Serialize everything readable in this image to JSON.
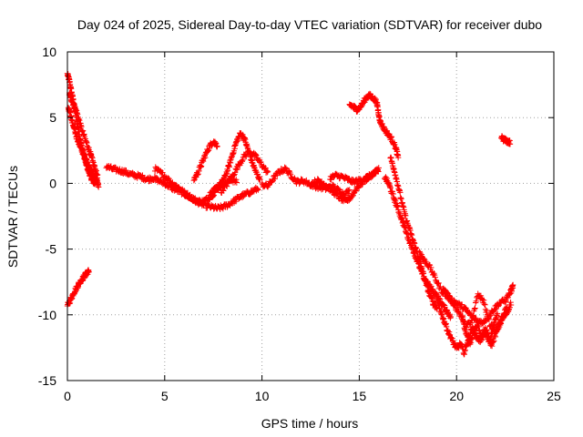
{
  "chart_data": {
    "type": "scatter",
    "title": "Day 024 of 2025, Sidereal Day-to-day VTEC variation (SDTVAR) for receiver dubo",
    "xlabel": "GPS time / hours",
    "ylabel": "SDTVAR / TECUs",
    "xlim": [
      0,
      25
    ],
    "ylim": [
      -15,
      10
    ],
    "xticks": [
      0,
      5,
      10,
      15,
      20,
      25
    ],
    "yticks": [
      -15,
      -10,
      -5,
      0,
      5,
      10
    ],
    "grid": true,
    "marker": "+",
    "series_color": "#ff0000",
    "series": [
      {
        "name": "SDTVAR",
        "segments": [
          [
            [
              0.0,
              8.3
            ],
            [
              0.1,
              7.8
            ],
            [
              0.2,
              7.0
            ],
            [
              0.3,
              6.3
            ],
            [
              0.4,
              5.5
            ],
            [
              0.5,
              4.6
            ],
            [
              0.6,
              3.8
            ],
            [
              0.7,
              3.0
            ],
            [
              0.8,
              2.4
            ],
            [
              0.9,
              1.8
            ],
            [
              1.0,
              1.3
            ],
            [
              1.1,
              0.9
            ],
            [
              1.2,
              0.5
            ],
            [
              1.3,
              0.2
            ],
            [
              1.4,
              0.0
            ]
          ],
          [
            [
              0.05,
              5.8
            ],
            [
              0.15,
              5.2
            ],
            [
              0.3,
              4.5
            ],
            [
              0.45,
              3.6
            ],
            [
              0.6,
              3.0
            ],
            [
              0.75,
              2.5
            ],
            [
              0.9,
              2.0
            ],
            [
              1.05,
              1.4
            ],
            [
              1.2,
              1.0
            ],
            [
              1.35,
              0.6
            ],
            [
              1.5,
              0.2
            ],
            [
              1.6,
              -0.2
            ]
          ],
          [
            [
              0.1,
              6.8
            ],
            [
              0.2,
              6.4
            ],
            [
              0.35,
              5.9
            ],
            [
              0.5,
              5.3
            ],
            [
              0.7,
              4.3
            ],
            [
              0.9,
              3.4
            ],
            [
              1.1,
              2.6
            ],
            [
              1.25,
              1.9
            ],
            [
              1.4,
              1.2
            ],
            [
              1.55,
              0.5
            ]
          ],
          [
            [
              0.0,
              -9.3
            ],
            [
              0.15,
              -8.9
            ],
            [
              0.3,
              -8.4
            ],
            [
              0.45,
              -8.0
            ],
            [
              0.6,
              -7.6
            ],
            [
              0.75,
              -7.3
            ],
            [
              0.9,
              -7.0
            ],
            [
              1.0,
              -6.8
            ],
            [
              1.1,
              -6.7
            ]
          ],
          [
            [
              2.0,
              1.3
            ],
            [
              2.3,
              1.1
            ],
            [
              2.6,
              1.0
            ],
            [
              2.9,
              0.9
            ],
            [
              3.2,
              0.7
            ],
            [
              3.5,
              0.6
            ],
            [
              3.8,
              0.5
            ],
            [
              4.1,
              0.3
            ],
            [
              4.4,
              0.4
            ],
            [
              4.7,
              0.2
            ],
            [
              5.0,
              0.0
            ],
            [
              5.3,
              -0.3
            ],
            [
              5.6,
              -0.5
            ],
            [
              5.9,
              -0.7
            ],
            [
              6.2,
              -1.0
            ],
            [
              6.5,
              -1.3
            ],
            [
              6.8,
              -1.5
            ],
            [
              7.1,
              -1.7
            ],
            [
              7.4,
              -1.8
            ],
            [
              7.7,
              -1.9
            ],
            [
              8.0,
              -1.8
            ],
            [
              8.3,
              -1.6
            ],
            [
              8.6,
              -1.3
            ],
            [
              8.9,
              -1.0
            ],
            [
              9.2,
              -0.8
            ],
            [
              9.5,
              -0.6
            ],
            [
              9.8,
              -0.4
            ]
          ],
          [
            [
              4.5,
              1.1
            ],
            [
              4.8,
              0.8
            ],
            [
              5.1,
              0.4
            ],
            [
              5.4,
              0.0
            ],
            [
              5.7,
              -0.3
            ],
            [
              6.0,
              -0.7
            ],
            [
              6.3,
              -1.0
            ],
            [
              6.6,
              -1.3
            ],
            [
              6.9,
              -1.4
            ],
            [
              7.2,
              -1.2
            ],
            [
              7.5,
              -0.8
            ],
            [
              7.8,
              -0.3
            ],
            [
              8.1,
              0.0
            ],
            [
              8.4,
              0.3
            ],
            [
              8.7,
              0.1
            ]
          ],
          [
            [
              6.5,
              0.3
            ],
            [
              6.7,
              0.8
            ],
            [
              6.9,
              1.5
            ],
            [
              7.1,
              2.2
            ],
            [
              7.3,
              2.8
            ],
            [
              7.5,
              3.2
            ],
            [
              7.7,
              2.9
            ]
          ],
          [
            [
              7.3,
              -0.9
            ],
            [
              7.5,
              -0.6
            ],
            [
              7.7,
              -0.3
            ],
            [
              7.9,
              0.0
            ],
            [
              8.1,
              0.5
            ],
            [
              8.3,
              1.3
            ],
            [
              8.5,
              2.3
            ],
            [
              8.7,
              3.2
            ],
            [
              8.9,
              3.8
            ],
            [
              9.1,
              3.4
            ],
            [
              9.3,
              2.5
            ],
            [
              9.5,
              1.6
            ],
            [
              9.7,
              0.8
            ],
            [
              9.9,
              0.3
            ]
          ],
          [
            [
              7.9,
              -0.6
            ],
            [
              8.2,
              -0.1
            ],
            [
              8.5,
              0.6
            ],
            [
              8.8,
              1.4
            ],
            [
              9.1,
              2.1
            ],
            [
              9.4,
              2.4
            ],
            [
              9.7,
              2.0
            ],
            [
              10.0,
              1.4
            ],
            [
              10.3,
              0.8
            ]
          ],
          [
            [
              10.0,
              -0.1
            ],
            [
              10.3,
              -0.2
            ],
            [
              10.6,
              0.4
            ],
            [
              10.9,
              0.9
            ],
            [
              11.2,
              1.1
            ],
            [
              11.5,
              0.6
            ],
            [
              11.8,
              0.1
            ],
            [
              12.1,
              0.2
            ],
            [
              12.4,
              0.0
            ],
            [
              12.7,
              -0.2
            ],
            [
              13.0,
              -0.3
            ],
            [
              13.3,
              -0.4
            ],
            [
              13.6,
              -0.2
            ],
            [
              13.9,
              -0.5
            ],
            [
              14.2,
              -0.8
            ],
            [
              14.5,
              -0.6
            ]
          ],
          [
            [
              12.5,
              -0.1
            ],
            [
              12.8,
              0.2
            ],
            [
              13.1,
              0.1
            ],
            [
              13.4,
              -0.3
            ],
            [
              13.7,
              -0.7
            ],
            [
              14.0,
              -1.1
            ],
            [
              14.3,
              -1.4
            ],
            [
              14.6,
              -1.0
            ],
            [
              14.9,
              -0.3
            ],
            [
              15.2,
              0.1
            ],
            [
              15.5,
              0.5
            ],
            [
              15.8,
              0.8
            ],
            [
              16.0,
              1.1
            ]
          ],
          [
            [
              13.5,
              0.4
            ],
            [
              13.8,
              0.6
            ],
            [
              14.1,
              0.5
            ],
            [
              14.4,
              0.3
            ],
            [
              14.7,
              0.1
            ],
            [
              15.0,
              0.2
            ],
            [
              15.3,
              0.4
            ],
            [
              15.6,
              0.6
            ],
            [
              15.9,
              0.9
            ]
          ],
          [
            [
              14.5,
              6.0
            ],
            [
              14.7,
              5.8
            ],
            [
              14.9,
              5.6
            ],
            [
              15.1,
              5.9
            ],
            [
              15.3,
              6.4
            ],
            [
              15.5,
              6.7
            ],
            [
              15.7,
              6.5
            ],
            [
              15.9,
              6.2
            ],
            [
              16.0,
              5.2
            ],
            [
              16.1,
              4.6
            ],
            [
              16.3,
              4.1
            ],
            [
              16.5,
              3.7
            ],
            [
              16.7,
              3.3
            ],
            [
              16.9,
              2.6
            ],
            [
              17.0,
              1.9
            ]
          ],
          [
            [
              16.3,
              0.5
            ],
            [
              16.5,
              0.0
            ],
            [
              16.7,
              -0.8
            ],
            [
              16.9,
              -1.6
            ],
            [
              17.1,
              -2.4
            ],
            [
              17.3,
              -3.2
            ],
            [
              17.5,
              -4.1
            ],
            [
              17.7,
              -4.8
            ],
            [
              17.9,
              -5.6
            ],
            [
              18.1,
              -6.4
            ],
            [
              18.3,
              -7.1
            ],
            [
              18.5,
              -7.6
            ],
            [
              18.7,
              -8.0
            ],
            [
              18.9,
              -8.4
            ],
            [
              19.1,
              -8.8
            ],
            [
              19.3,
              -9.3
            ],
            [
              19.5,
              -9.7
            ],
            [
              19.7,
              -10.2
            ]
          ],
          [
            [
              16.6,
              2.0
            ],
            [
              16.8,
              1.0
            ],
            [
              17.0,
              -0.2
            ],
            [
              17.2,
              -1.5
            ],
            [
              17.4,
              -2.7
            ],
            [
              17.6,
              -3.6
            ],
            [
              17.8,
              -4.5
            ],
            [
              18.0,
              -5.4
            ],
            [
              18.2,
              -6.4
            ],
            [
              18.4,
              -7.5
            ],
            [
              18.6,
              -8.4
            ],
            [
              18.8,
              -9.1
            ],
            [
              19.0,
              -9.5
            ]
          ],
          [
            [
              18.1,
              -5.2
            ],
            [
              18.3,
              -5.8
            ],
            [
              18.6,
              -6.3
            ],
            [
              18.9,
              -7.2
            ],
            [
              19.2,
              -8.1
            ],
            [
              19.5,
              -8.6
            ],
            [
              19.8,
              -8.9
            ],
            [
              20.1,
              -9.2
            ],
            [
              20.4,
              -9.5
            ],
            [
              20.7,
              -10.0
            ],
            [
              21.0,
              -10.4
            ],
            [
              21.3,
              -10.6
            ],
            [
              21.6,
              -10.2
            ],
            [
              21.9,
              -9.6
            ],
            [
              22.2,
              -9.1
            ],
            [
              22.5,
              -8.9
            ],
            [
              22.8,
              -8.2
            ],
            [
              22.9,
              -7.8
            ]
          ],
          [
            [
              19.0,
              -9.0
            ],
            [
              19.2,
              -9.8
            ],
            [
              19.4,
              -10.6
            ],
            [
              19.6,
              -11.4
            ],
            [
              19.8,
              -12.0
            ],
            [
              20.0,
              -12.6
            ],
            [
              20.2,
              -12.2
            ],
            [
              20.4,
              -12.9
            ],
            [
              20.6,
              -11.8
            ],
            [
              20.8,
              -11.0
            ],
            [
              21.0,
              -11.6
            ],
            [
              21.2,
              -12.0
            ],
            [
              21.4,
              -11.3
            ],
            [
              21.6,
              -11.8
            ],
            [
              21.8,
              -12.3
            ],
            [
              22.0,
              -11.5
            ],
            [
              22.2,
              -10.8
            ],
            [
              22.4,
              -10.2
            ],
            [
              22.6,
              -9.8
            ],
            [
              22.8,
              -9.1
            ]
          ],
          [
            [
              19.3,
              -8.0
            ],
            [
              19.6,
              -8.6
            ],
            [
              19.9,
              -9.3
            ],
            [
              20.2,
              -10.1
            ],
            [
              20.5,
              -10.8
            ],
            [
              20.8,
              -10.5
            ],
            [
              21.1,
              -8.4
            ],
            [
              21.4,
              -9.0
            ],
            [
              21.7,
              -10.7
            ],
            [
              22.0,
              -11.2
            ],
            [
              22.3,
              -10.3
            ],
            [
              22.6,
              -9.4
            ]
          ],
          [
            [
              20.3,
              -10.2
            ],
            [
              20.5,
              -11.5
            ],
            [
              20.7,
              -12.2
            ],
            [
              20.9,
              -11.2
            ],
            [
              21.1,
              -10.8
            ],
            [
              21.3,
              -11.9
            ],
            [
              21.5,
              -11.0
            ],
            [
              21.7,
              -12.0
            ],
            [
              21.9,
              -10.9
            ],
            [
              22.1,
              -10.0
            ]
          ],
          [
            [
              22.3,
              3.5
            ],
            [
              22.45,
              3.3
            ],
            [
              22.6,
              3.2
            ],
            [
              22.75,
              3.1
            ]
          ]
        ]
      }
    ]
  }
}
